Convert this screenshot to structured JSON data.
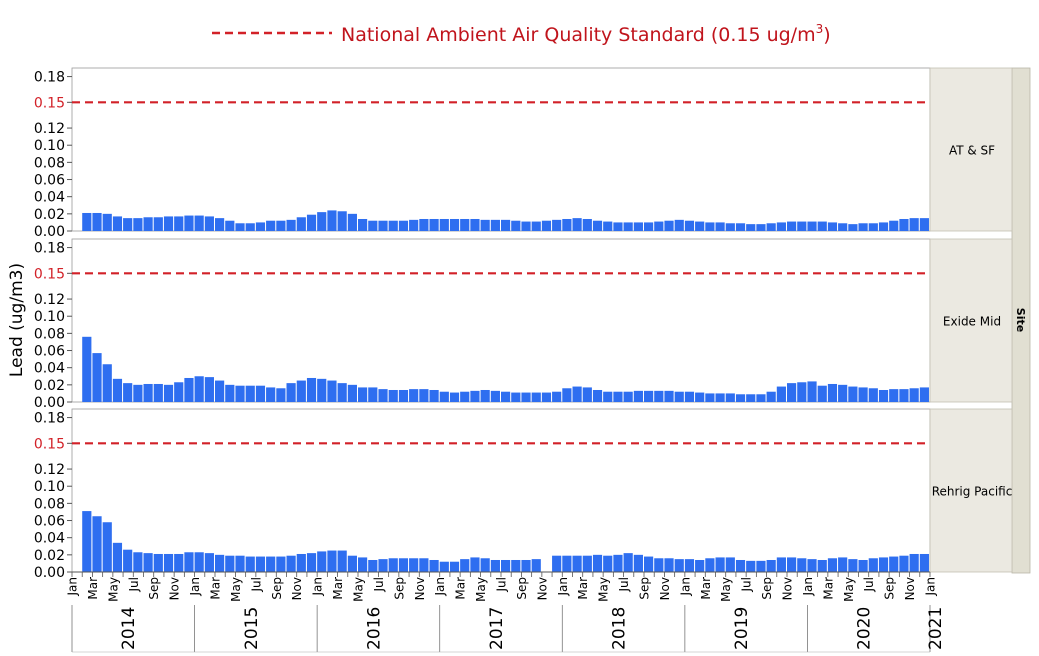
{
  "legend": {
    "label": "National Ambient Air Quality Standard (0.15 ug/m",
    "sup": "3",
    "tail": ")"
  },
  "y_axis_title": "Lead (ug/m3)",
  "site_group_label": "Site",
  "colors": {
    "bar": "#2e6ef0",
    "standard_line": "#d22128",
    "standard_tick": "#d22128",
    "strip_bg": "#ebe9e1",
    "group_strip_bg": "#e1dfd2"
  },
  "chart_data": {
    "type": "bar",
    "x_month_ticks": [
      "Jan",
      "Mar",
      "May",
      "Jul",
      "Sep",
      "Nov"
    ],
    "years": [
      "2014",
      "2015",
      "2016",
      "2017",
      "2018",
      "2019",
      "2020",
      "2021"
    ],
    "end_tick": "Jan",
    "ylim": [
      0,
      0.19
    ],
    "y_ticks": [
      "0.00",
      "0.02",
      "0.04",
      "0.06",
      "0.08",
      "0.10",
      "0.12",
      "0.15",
      "0.18"
    ],
    "y_tick_values": [
      0,
      0.02,
      0.04,
      0.06,
      0.08,
      0.1,
      0.12,
      0.15,
      0.18
    ],
    "standard_value": 0.15,
    "start_month": "2014-01",
    "series": [
      {
        "name": "AT & SF",
        "values": [
          null,
          0.021,
          0.021,
          0.02,
          0.017,
          0.015,
          0.015,
          0.016,
          0.016,
          0.017,
          0.017,
          0.018,
          0.018,
          0.017,
          0.015,
          0.012,
          0.009,
          0.009,
          0.01,
          0.012,
          0.012,
          0.013,
          0.016,
          0.019,
          0.022,
          0.024,
          0.023,
          0.02,
          0.014,
          0.012,
          0.012,
          0.012,
          0.012,
          0.013,
          0.014,
          0.014,
          0.014,
          0.014,
          0.014,
          0.014,
          0.013,
          0.013,
          0.013,
          0.012,
          0.011,
          0.011,
          0.012,
          0.013,
          0.014,
          0.015,
          0.014,
          0.012,
          0.011,
          0.01,
          0.01,
          0.01,
          0.01,
          0.011,
          0.012,
          0.013,
          0.012,
          0.011,
          0.01,
          0.01,
          0.009,
          0.009,
          0.008,
          0.008,
          0.009,
          0.01,
          0.011,
          0.011,
          0.011,
          0.011,
          0.01,
          0.009,
          0.008,
          0.009,
          0.009,
          0.01,
          0.012,
          0.014,
          0.015,
          0.015,
          0.015
        ]
      },
      {
        "name": "Exide Mid",
        "values": [
          null,
          0.076,
          0.057,
          0.044,
          0.027,
          0.022,
          0.02,
          0.021,
          0.021,
          0.02,
          0.023,
          0.028,
          0.03,
          0.029,
          0.025,
          0.02,
          0.019,
          0.019,
          0.019,
          0.017,
          0.016,
          0.022,
          0.025,
          0.028,
          0.027,
          0.025,
          0.022,
          0.02,
          0.017,
          0.017,
          0.015,
          0.014,
          0.014,
          0.015,
          0.015,
          0.014,
          0.012,
          0.011,
          0.012,
          0.013,
          0.014,
          0.013,
          0.012,
          0.011,
          0.011,
          0.011,
          0.011,
          0.012,
          0.016,
          0.018,
          0.017,
          0.014,
          0.012,
          0.012,
          0.012,
          0.013,
          0.013,
          0.013,
          0.013,
          0.012,
          0.012,
          0.011,
          0.01,
          0.01,
          0.01,
          0.009,
          0.009,
          0.009,
          0.012,
          0.018,
          0.022,
          0.023,
          0.024,
          0.019,
          0.021,
          0.02,
          0.018,
          0.017,
          0.016,
          0.014,
          0.015,
          0.015,
          0.016,
          0.017,
          0.018,
          0.02
        ]
      },
      {
        "name": "Rehrig Pacific",
        "values": [
          null,
          0.071,
          0.065,
          0.058,
          0.034,
          0.026,
          0.023,
          0.022,
          0.021,
          0.021,
          0.021,
          0.023,
          0.023,
          0.022,
          0.02,
          0.019,
          0.019,
          0.018,
          0.018,
          0.018,
          0.018,
          0.019,
          0.021,
          0.022,
          0.024,
          0.025,
          0.025,
          0.019,
          0.017,
          0.014,
          0.015,
          0.016,
          0.016,
          0.016,
          0.016,
          0.014,
          0.012,
          0.012,
          0.015,
          0.017,
          0.016,
          0.014,
          0.014,
          0.014,
          0.014,
          0.015,
          null,
          0.019,
          0.019,
          0.019,
          0.019,
          0.02,
          0.019,
          0.02,
          0.022,
          0.02,
          0.018,
          0.016,
          0.016,
          0.015,
          0.015,
          0.014,
          0.016,
          0.017,
          0.017,
          0.014,
          0.013,
          0.013,
          0.014,
          0.017,
          0.017,
          0.016,
          0.015,
          0.014,
          0.016,
          0.017,
          0.015,
          0.014,
          0.016,
          0.017,
          0.018,
          0.019,
          0.021,
          0.021,
          0.02
        ]
      }
    ]
  }
}
